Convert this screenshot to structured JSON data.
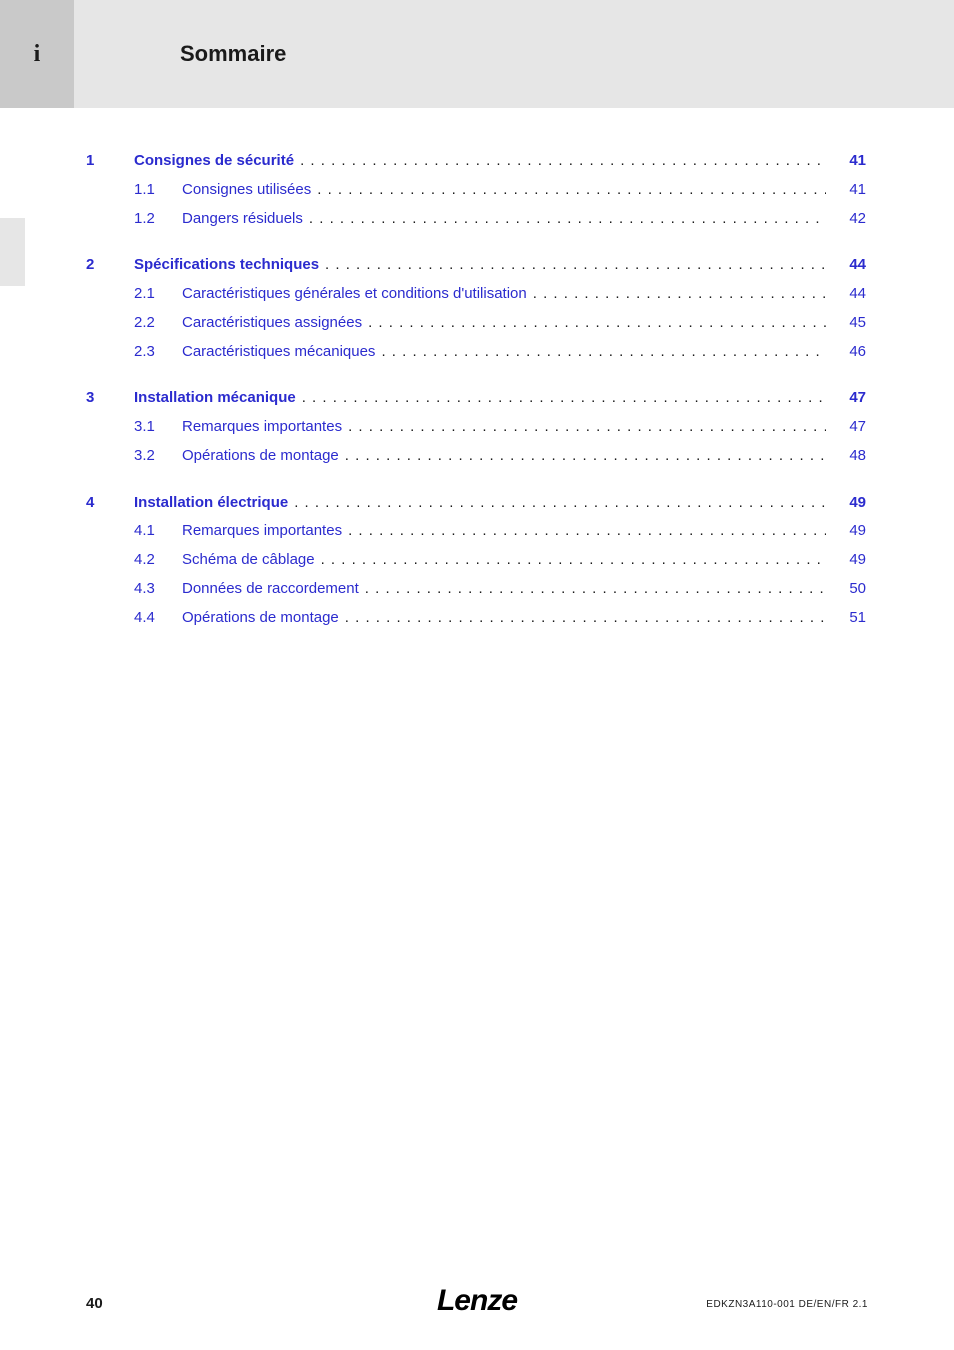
{
  "colors": {
    "header_band": "#e6e6e6",
    "tab_bg": "#c9c9c9",
    "side_tab_bg": "#e6e6e6",
    "link": "#2b2bce",
    "text": "#1a1a1a",
    "page_bg": "#ffffff"
  },
  "header": {
    "tab_letter": "i",
    "title": "Sommaire"
  },
  "toc": [
    {
      "num": "1",
      "label": "Consignes de sécurité",
      "page": "41",
      "subs": [
        {
          "num": "1.1",
          "label": "Consignes utilisées",
          "page": "41"
        },
        {
          "num": "1.2",
          "label": "Dangers résiduels",
          "page": "42"
        }
      ]
    },
    {
      "num": "2",
      "label": "Spécifications techniques",
      "page": "44",
      "subs": [
        {
          "num": "2.1",
          "label": "Caractéristiques générales et conditions d'utilisation",
          "page": "44"
        },
        {
          "num": "2.2",
          "label": "Caractéristiques assignées",
          "page": "45"
        },
        {
          "num": "2.3",
          "label": "Caractéristiques mécaniques",
          "page": "46"
        }
      ]
    },
    {
      "num": "3",
      "label": "Installation mécanique",
      "page": "47",
      "subs": [
        {
          "num": "3.1",
          "label": "Remarques importantes",
          "page": "47"
        },
        {
          "num": "3.2",
          "label": "Opérations de montage",
          "page": "48"
        }
      ]
    },
    {
      "num": "4",
      "label": "Installation électrique",
      "page": "49",
      "subs": [
        {
          "num": "4.1",
          "label": "Remarques importantes",
          "page": "49"
        },
        {
          "num": "4.2",
          "label": "Schéma de câblage",
          "page": "49"
        },
        {
          "num": "4.3",
          "label": "Données de raccordement",
          "page": "50"
        },
        {
          "num": "4.4",
          "label": "Opérations de montage",
          "page": "51"
        }
      ]
    }
  ],
  "footer": {
    "page_number": "40",
    "logo_text": "Lenze",
    "doc_ref": "EDKZN3A110-001   DE/EN/FR   2.1"
  }
}
